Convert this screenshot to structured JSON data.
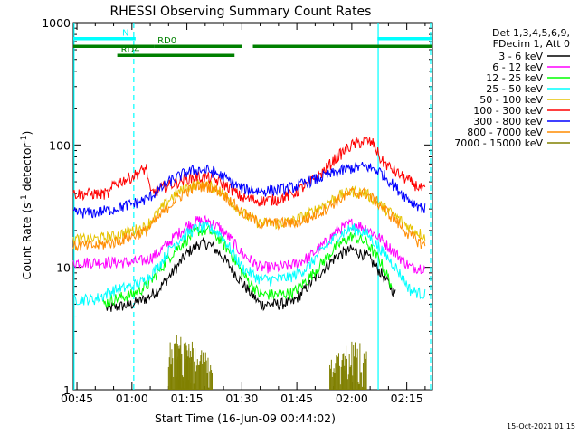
{
  "chart_data": {
    "type": "line",
    "title": "RHESSI Observing Summary Count Rates",
    "xlabel": "Start Time (16-Jun-09 00:44:02)",
    "ylabel_prefix": "Count Rate (s",
    "ylabel_sup1": "-1",
    "ylabel_mid": " detector",
    "ylabel_sup2": "-1",
    "ylabel_suffix": ")",
    "xlim_min": [
      44.0,
      142.0
    ],
    "ylim": [
      1,
      1000
    ],
    "yscale": "log",
    "xticks": [
      {
        "min": 45,
        "label": "00:45"
      },
      {
        "min": 60,
        "label": "01:00"
      },
      {
        "min": 75,
        "label": "01:15"
      },
      {
        "min": 90,
        "label": "01:30"
      },
      {
        "min": 105,
        "label": "01:45"
      },
      {
        "min": 120,
        "label": "02:00"
      },
      {
        "min": 135,
        "label": "02:15"
      }
    ],
    "yticks": [
      {
        "v": 1,
        "label": "1"
      },
      {
        "v": 10,
        "label": "10"
      },
      {
        "v": 100,
        "label": "100"
      },
      {
        "v": 1000,
        "label": "1000"
      }
    ],
    "legend_header": [
      "Det 1,3,4,5,6,9,",
      "FDecim 1, Att 0"
    ],
    "legend_placement": "right",
    "series": [
      {
        "name": "3 - 6 keV",
        "color": "#000000",
        "x": [
          53,
          60,
          64,
          67,
          71,
          75,
          78,
          81,
          84,
          87,
          90,
          95,
          100,
          104,
          108,
          112,
          116,
          120,
          124,
          128,
          132
        ],
        "y": [
          4.6,
          5.0,
          5.6,
          6.5,
          9,
          13,
          15.5,
          15.5,
          13,
          10,
          7.5,
          5.0,
          5.0,
          5.2,
          7,
          9.5,
          12.5,
          14,
          12.5,
          9,
          6
        ]
      },
      {
        "name": "6 - 12 keV",
        "color": "#ff00ff",
        "x": [
          44,
          50,
          55,
          60,
          64,
          67,
          71,
          75,
          78,
          81,
          84,
          87,
          90,
          95,
          100,
          104,
          108,
          112,
          116,
          120,
          124,
          128,
          132,
          136,
          140
        ],
        "y": [
          11,
          11,
          11,
          11,
          11.5,
          13,
          17,
          22,
          24,
          24,
          21,
          17,
          13,
          10,
          10,
          10.5,
          12,
          15,
          20,
          23,
          21,
          17,
          13,
          10,
          10
        ]
      },
      {
        "name": "12 - 25 keV",
        "color": "#00ff00",
        "x": [
          52,
          55,
          60,
          64,
          67,
          71,
          75,
          78,
          81,
          84,
          87,
          90,
          95,
          100,
          104,
          108,
          112,
          116,
          120,
          124,
          128,
          131
        ],
        "y": [
          5.0,
          5.5,
          6.0,
          7,
          9,
          13,
          17,
          20,
          20,
          17,
          13,
          9,
          6.0,
          6.0,
          6.2,
          8,
          11,
          15,
          18,
          16,
          11,
          7
        ]
      },
      {
        "name": "25 - 50 keV",
        "color": "#00ffff",
        "x": [
          44,
          50,
          55,
          60,
          64,
          67,
          71,
          75,
          78,
          81,
          84,
          87,
          90,
          95,
          100,
          104,
          108,
          112,
          116,
          120,
          124,
          128,
          132,
          136,
          140
        ],
        "y": [
          5.5,
          5.5,
          6.5,
          7,
          8,
          10,
          15,
          19,
          21,
          21,
          19,
          14,
          10,
          8,
          8,
          8.5,
          10,
          14,
          18,
          21,
          19,
          14,
          10,
          6.5,
          6
        ]
      },
      {
        "name": "50 - 100 keV",
        "color": "#e6c300",
        "x": [
          44,
          50,
          55,
          60,
          63,
          64,
          67,
          71,
          75,
          78,
          81,
          84,
          87,
          90,
          95,
          100,
          104,
          108,
          112,
          116,
          120,
          124,
          128,
          132,
          136,
          140
        ],
        "y": [
          17,
          17,
          18,
          20,
          21,
          22,
          28,
          38,
          45,
          48,
          47,
          42,
          35,
          28,
          23,
          23,
          24,
          27,
          32,
          38,
          42,
          40,
          32,
          26,
          21,
          18
        ]
      },
      {
        "name": "100 - 300 keV",
        "color": "#ff0000",
        "x": [
          44,
          50,
          54,
          55,
          60,
          64,
          65,
          67,
          71,
          75,
          78,
          81,
          84,
          87,
          90,
          95,
          100,
          104,
          108,
          112,
          116,
          120,
          124,
          126,
          128,
          132,
          136,
          140
        ],
        "y": [
          40,
          40,
          40,
          48,
          55,
          65,
          40,
          43,
          48,
          53,
          55,
          54,
          50,
          44,
          37,
          35,
          36,
          40,
          48,
          60,
          80,
          100,
          108,
          102,
          75,
          60,
          50,
          42
        ]
      },
      {
        "name": "300 - 800 keV",
        "color": "#0000ff",
        "x": [
          44,
          50,
          55,
          60,
          64,
          67,
          71,
          75,
          78,
          81,
          84,
          87,
          90,
          95,
          100,
          104,
          108,
          112,
          116,
          120,
          124,
          128,
          132,
          136,
          140
        ],
        "y": [
          28,
          28,
          30,
          33,
          36,
          42,
          52,
          60,
          63,
          62,
          57,
          50,
          44,
          42,
          43,
          45,
          50,
          55,
          60,
          65,
          67,
          60,
          45,
          35,
          30
        ]
      },
      {
        "name": "800 - 7000 keV",
        "color": "#ff8c00",
        "x": [
          44,
          50,
          55,
          60,
          64,
          67,
          71,
          75,
          78,
          81,
          84,
          87,
          90,
          95,
          100,
          104,
          108,
          112,
          116,
          120,
          124,
          128,
          132,
          136,
          140
        ],
        "y": [
          15,
          15,
          16,
          18,
          20,
          25,
          34,
          42,
          46,
          46,
          42,
          35,
          28,
          23,
          23,
          23,
          25,
          29,
          35,
          41,
          40,
          32,
          24,
          18,
          15
        ]
      },
      {
        "name": "7000 - 15000 keV",
        "color": "#808000",
        "bursts": [
          {
            "x0": 70,
            "x1": 77,
            "peak": 2.5
          },
          {
            "x0": 72,
            "x1": 76,
            "peak": 3.0
          },
          {
            "x0": 77,
            "x1": 82,
            "peak": 2.2
          },
          {
            "x0": 114,
            "x1": 118,
            "peak": 2.0
          },
          {
            "x0": 118,
            "x1": 124,
            "peak": 2.5
          }
        ]
      }
    ],
    "annotations": {
      "bars": [
        {
          "label": "N",
          "x0": 44,
          "x1": 61,
          "y": 740,
          "color": "#00ffff"
        },
        {
          "label": "",
          "x0": 127,
          "x1": 142,
          "y": 740,
          "color": "#00ffff"
        },
        {
          "label": "",
          "x0": 44,
          "x1": 66,
          "y": 640,
          "color": "#008000"
        },
        {
          "label": "RD0",
          "x0": 66,
          "x1": 90,
          "y": 640,
          "color": "#008000"
        },
        {
          "label": "RD4",
          "x0": 56,
          "x1": 88,
          "y": 540,
          "color": "#008000"
        },
        {
          "label": "",
          "x0": 93,
          "x1": 142,
          "y": 640,
          "color": "#008000"
        }
      ],
      "vlines": [
        {
          "x": 44.2,
          "style": "solid",
          "color": "#00ffff"
        },
        {
          "x": 60.5,
          "style": "dashed",
          "color": "#00ffff"
        },
        {
          "x": 127.2,
          "style": "solid",
          "color": "#00ffff"
        },
        {
          "x": 141.5,
          "style": "dashed",
          "color": "#00ffff"
        }
      ]
    }
  },
  "footer_stamp": "15-Oct-2021 01:15"
}
